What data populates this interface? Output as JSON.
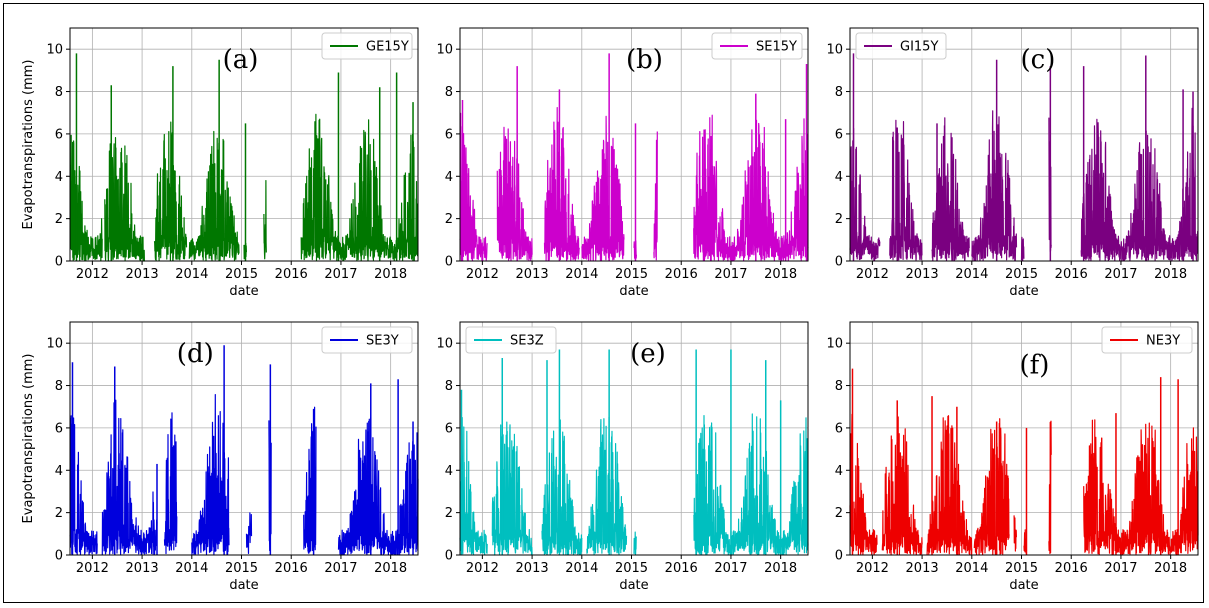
{
  "chart_data": [
    {
      "type": "line",
      "panel": "(a)",
      "xlabel": "date",
      "ylabel": "Evapotranspirations (mm)",
      "ylim": [
        0,
        11
      ],
      "yticks": [
        0,
        2,
        4,
        6,
        8,
        10
      ],
      "xticks": [
        "2012",
        "2013",
        "2014",
        "2015",
        "2016",
        "2017",
        "2018"
      ],
      "xlim": [
        2011.55,
        2018.55
      ],
      "grid": true,
      "legend_position": "top-right",
      "color": "#007700",
      "series": [
        {
          "name": "GE15Y",
          "segments": [
            [
              2011.55,
              2012.2
            ],
            [
              2012.25,
              2013.05
            ],
            [
              2013.25,
              2013.9
            ],
            [
              2013.95,
              2014.95
            ],
            [
              2015.05,
              2015.1
            ],
            [
              2015.45,
              2015.5
            ],
            [
              2016.2,
              2018.55
            ]
          ],
          "peaks": [
            [
              2011.68,
              9.8
            ],
            [
              2012.38,
              8.3
            ],
            [
              2013.62,
              9.2
            ],
            [
              2014.55,
              9.5
            ],
            [
              2015.08,
              6.5
            ],
            [
              2016.95,
              8.9
            ],
            [
              2017.78,
              8.2
            ],
            [
              2018.12,
              8.9
            ],
            [
              2018.45,
              7.5
            ]
          ]
        }
      ]
    },
    {
      "type": "line",
      "panel": "(b)",
      "xlabel": "date",
      "ylabel": "",
      "ylim": [
        0,
        11
      ],
      "yticks": [
        0,
        2,
        4,
        6,
        8,
        10
      ],
      "xticks": [
        "2012",
        "2013",
        "2014",
        "2015",
        "2016",
        "2017",
        "2018"
      ],
      "xlim": [
        2011.55,
        2018.55
      ],
      "grid": true,
      "legend_position": "top-right",
      "color": "#cc00cc",
      "series": [
        {
          "name": "SE15Y",
          "segments": [
            [
              2011.55,
              2012.1
            ],
            [
              2012.3,
              2013.0
            ],
            [
              2013.25,
              2013.95
            ],
            [
              2014.0,
              2014.85
            ],
            [
              2015.05,
              2015.1
            ],
            [
              2015.45,
              2015.52
            ],
            [
              2016.25,
              2018.55
            ]
          ],
          "peaks": [
            [
              2011.6,
              7.6
            ],
            [
              2012.7,
              9.2
            ],
            [
              2013.55,
              8.1
            ],
            [
              2014.55,
              9.8
            ],
            [
              2015.08,
              6.5
            ],
            [
              2016.6,
              5.9
            ],
            [
              2017.5,
              7.9
            ],
            [
              2018.1,
              6.7
            ],
            [
              2018.52,
              9.3
            ]
          ]
        }
      ]
    },
    {
      "type": "line",
      "panel": "(c)",
      "xlabel": "date",
      "ylabel": "",
      "ylim": [
        0,
        11
      ],
      "yticks": [
        0,
        2,
        4,
        6,
        8,
        10
      ],
      "xticks": [
        "2012",
        "2013",
        "2014",
        "2015",
        "2016",
        "2017",
        "2018"
      ],
      "xlim": [
        2011.55,
        2018.55
      ],
      "grid": true,
      "legend_position": "top-left",
      "color": "#7a0080",
      "series": [
        {
          "name": "GI15Y",
          "segments": [
            [
              2011.55,
              2012.15
            ],
            [
              2012.35,
              2013.0
            ],
            [
              2013.2,
              2013.95
            ],
            [
              2014.0,
              2014.9
            ],
            [
              2015.0,
              2015.05
            ],
            [
              2015.55,
              2015.6
            ],
            [
              2016.2,
              2018.55
            ]
          ],
          "peaks": [
            [
              2011.62,
              9.8
            ],
            [
              2012.5,
              6.3
            ],
            [
              2013.3,
              6.5
            ],
            [
              2014.5,
              9.5
            ],
            [
              2015.58,
              9.2
            ],
            [
              2016.25,
              9.2
            ],
            [
              2017.5,
              9.7
            ],
            [
              2018.25,
              8.1
            ],
            [
              2018.45,
              8.0
            ]
          ]
        }
      ]
    },
    {
      "type": "line",
      "panel": "(d)",
      "xlabel": "date",
      "ylabel": "Evapotranspirations (mm)",
      "ylim": [
        0,
        11
      ],
      "yticks": [
        0,
        2,
        4,
        6,
        8,
        10
      ],
      "xticks": [
        "2012",
        "2013",
        "2014",
        "2015",
        "2016",
        "2017",
        "2018"
      ],
      "xlim": [
        2011.55,
        2018.55
      ],
      "grid": true,
      "legend_position": "top-right",
      "color": "#0000dd",
      "series": [
        {
          "name": "SE3Y",
          "segments": [
            [
              2011.55,
              2012.1
            ],
            [
              2012.2,
              2013.3
            ],
            [
              2013.45,
              2013.7
            ],
            [
              2014.0,
              2014.75
            ],
            [
              2015.1,
              2015.2
            ],
            [
              2015.55,
              2015.6
            ],
            [
              2016.25,
              2016.5
            ],
            [
              2016.95,
              2018.55
            ]
          ],
          "peaks": [
            [
              2011.6,
              9.1
            ],
            [
              2012.45,
              8.9
            ],
            [
              2013.3,
              4.3
            ],
            [
              2014.65,
              9.9
            ],
            [
              2015.58,
              9.0
            ],
            [
              2016.45,
              6.9
            ],
            [
              2017.6,
              8.1
            ],
            [
              2018.15,
              8.3
            ],
            [
              2018.45,
              6.3
            ]
          ]
        }
      ]
    },
    {
      "type": "line",
      "panel": "(e)",
      "xlabel": "date",
      "ylabel": "",
      "ylim": [
        0,
        11
      ],
      "yticks": [
        0,
        2,
        4,
        6,
        8,
        10
      ],
      "xticks": [
        "2012",
        "2013",
        "2014",
        "2015",
        "2016",
        "2017",
        "2018"
      ],
      "xlim": [
        2011.55,
        2018.55
      ],
      "grid": true,
      "legend_position": "top-left",
      "color": "#00bfbf",
      "series": [
        {
          "name": "SE3Z",
          "segments": [
            [
              2011.55,
              2012.1
            ],
            [
              2012.2,
              2013.0
            ],
            [
              2013.2,
              2014.0
            ],
            [
              2014.1,
              2014.9
            ],
            [
              2015.05,
              2015.1
            ],
            [
              2016.25,
              2018.55
            ]
          ],
          "peaks": [
            [
              2011.58,
              7.8
            ],
            [
              2012.4,
              9.3
            ],
            [
              2013.3,
              9.2
            ],
            [
              2013.55,
              9.7
            ],
            [
              2014.55,
              9.7
            ],
            [
              2016.3,
              9.7
            ],
            [
              2017.0,
              9.7
            ],
            [
              2017.7,
              9.2
            ],
            [
              2018.0,
              7.3
            ]
          ]
        }
      ]
    },
    {
      "type": "line",
      "panel": "(f)",
      "xlabel": "date",
      "ylabel": "",
      "ylim": [
        0,
        11
      ],
      "yticks": [
        0,
        2,
        4,
        6,
        8,
        10
      ],
      "xticks": [
        "2012",
        "2013",
        "2014",
        "2015",
        "2016",
        "2017",
        "2018"
      ],
      "xlim": [
        2011.55,
        2018.55
      ],
      "grid": true,
      "legend_position": "top-right",
      "color": "#ee0000",
      "series": [
        {
          "name": "NE3Y",
          "segments": [
            [
              2011.55,
              2012.1
            ],
            [
              2012.2,
              2013.0
            ],
            [
              2013.1,
              2014.0
            ],
            [
              2014.05,
              2014.75
            ],
            [
              2014.85,
              2014.9
            ],
            [
              2015.05,
              2015.1
            ],
            [
              2015.55,
              2015.6
            ],
            [
              2016.25,
              2018.55
            ]
          ],
          "peaks": [
            [
              2011.6,
              8.8
            ],
            [
              2012.5,
              7.3
            ],
            [
              2013.2,
              7.5
            ],
            [
              2013.7,
              7.0
            ],
            [
              2014.5,
              6.3
            ],
            [
              2015.1,
              6.0
            ],
            [
              2016.9,
              6.7
            ],
            [
              2017.8,
              8.4
            ],
            [
              2018.15,
              8.3
            ]
          ]
        }
      ]
    }
  ],
  "panels_text": {
    "xlabel": "date",
    "ylabel": "Evapotranspirations (mm)"
  }
}
